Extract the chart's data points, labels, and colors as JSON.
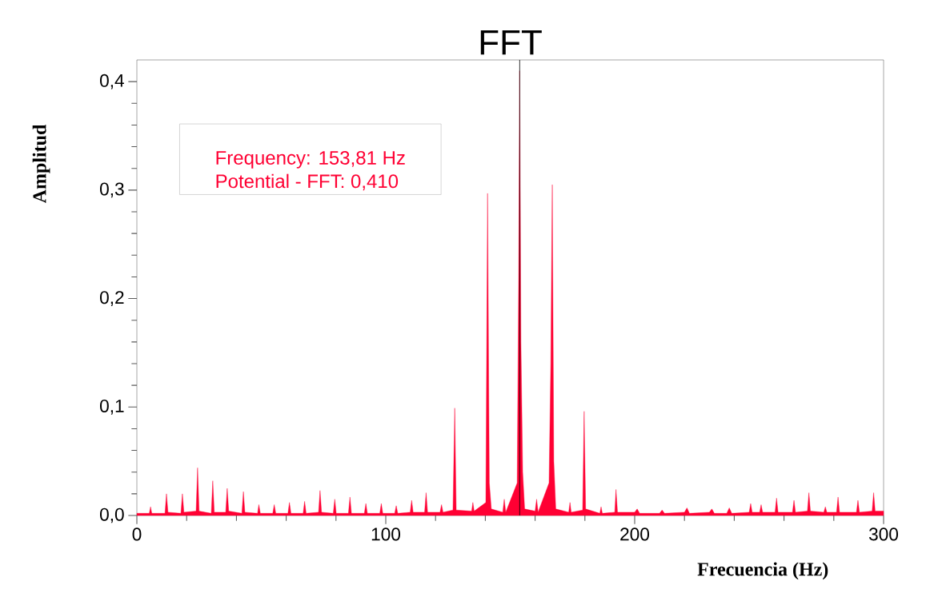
{
  "chart_data": {
    "type": "area",
    "title": "FFT",
    "xlabel": "Frecuencia (Hz)",
    "ylabel": "Amplitud",
    "xlim": [
      0,
      300
    ],
    "ylim": [
      0,
      0.42
    ],
    "xticks": [
      0,
      {
        "value": 20,
        "label": null
      },
      {
        "value": 40,
        "label": null
      },
      {
        "value": 60,
        "label": null
      },
      {
        "value": 80,
        "label": null
      },
      100,
      {
        "value": 120,
        "label": null
      },
      {
        "value": 140,
        "label": null
      },
      {
        "value": 160,
        "label": null
      },
      {
        "value": 180,
        "label": null
      },
      200,
      {
        "value": 220,
        "label": null
      },
      {
        "value": 240,
        "label": null
      },
      {
        "value": 260,
        "label": null
      },
      {
        "value": 280,
        "label": null
      },
      300
    ],
    "yticks": [
      {
        "value": 0,
        "label": "0,0"
      },
      {
        "value": 0.02,
        "label": null
      },
      {
        "value": 0.04,
        "label": null
      },
      {
        "value": 0.06,
        "label": null
      },
      {
        "value": 0.08,
        "label": null
      },
      {
        "value": 0.1,
        "label": "0,1"
      },
      {
        "value": 0.12,
        "label": null
      },
      {
        "value": 0.14,
        "label": null
      },
      {
        "value": 0.16,
        "label": null
      },
      {
        "value": 0.18,
        "label": null
      },
      {
        "value": 0.2,
        "label": "0,2"
      },
      {
        "value": 0.22,
        "label": null
      },
      {
        "value": 0.24,
        "label": null
      },
      {
        "value": 0.26,
        "label": null
      },
      {
        "value": 0.28,
        "label": null
      },
      {
        "value": 0.3,
        "label": "0,3"
      },
      {
        "value": 0.32,
        "label": null
      },
      {
        "value": 0.34,
        "label": null
      },
      {
        "value": 0.36,
        "label": null
      },
      {
        "value": 0.38,
        "label": null
      },
      {
        "value": 0.4,
        "label": "0,4"
      }
    ],
    "grid": false,
    "ref_lines": [
      {
        "axis": "x",
        "value": 153.81,
        "color": "#000000"
      }
    ],
    "annotations": [
      "Frequency: 153,81 Hz",
      "Potential - FFT: 0,410"
    ],
    "series": [
      {
        "color": "#ff0033",
        "x": [
          0,
          5,
          5.5,
          6,
          11.3,
          11.9,
          12.5,
          17.7,
          18.3,
          18.9,
          23.8,
          24.4,
          25,
          29.9,
          30.5,
          31.1,
          35.7,
          36.3,
          36.9,
          42.2,
          42.8,
          43.4,
          48.5,
          49,
          49.6,
          54.6,
          55.2,
          55.8,
          60.7,
          61.3,
          61.9,
          66.8,
          67.4,
          68,
          73,
          73.6,
          74.2,
          78.9,
          79.5,
          80.1,
          85,
          85.6,
          86.2,
          91.4,
          92,
          92.6,
          97.6,
          98.2,
          98.8,
          103.6,
          104.2,
          104.8,
          109.8,
          110.4,
          111,
          115.6,
          116.2,
          116.8,
          121.8,
          122.4,
          123,
          127,
          127.7,
          128.3,
          134.5,
          135,
          135.5,
          140.2,
          140.9,
          141.6,
          142.4,
          147,
          147.6,
          148.2,
          152.8,
          153.4,
          153.81,
          154.3,
          155,
          155.8,
          160,
          160.6,
          161.2,
          165.6,
          166.3,
          166.9,
          167.5,
          168.3,
          173.5,
          174,
          174.5,
          179.1,
          179.7,
          180.3,
          186,
          186.5,
          187,
          192,
          192.5,
          193.1,
          200,
          201,
          202,
          210,
          211,
          212,
          220,
          221,
          222,
          230,
          231,
          232,
          237,
          238,
          239,
          246,
          246.6,
          247.2,
          250.2,
          250.8,
          251.4,
          256.4,
          257,
          257.6,
          263.4,
          264,
          264.6,
          269.4,
          270,
          270.6,
          276,
          276.6,
          277.2,
          281.1,
          281.7,
          282.3,
          289.1,
          289.7,
          290.3,
          295.4,
          296,
          296.6,
          300
        ],
        "values": [
          0.002,
          0.002,
          0.008,
          0.002,
          0.002,
          0.02,
          0.003,
          0.002,
          0.02,
          0.003,
          0.004,
          0.044,
          0.004,
          0.002,
          0.032,
          0.003,
          0.003,
          0.025,
          0.004,
          0.002,
          0.022,
          0.003,
          0.002,
          0.01,
          0.002,
          0.002,
          0.01,
          0.002,
          0.002,
          0.012,
          0.002,
          0.002,
          0.013,
          0.002,
          0.003,
          0.023,
          0.003,
          0.002,
          0.015,
          0.002,
          0.002,
          0.017,
          0.002,
          0.002,
          0.011,
          0.002,
          0.002,
          0.011,
          0.002,
          0.002,
          0.009,
          0.002,
          0.003,
          0.014,
          0.003,
          0.003,
          0.021,
          0.003,
          0.003,
          0.01,
          0.003,
          0.005,
          0.099,
          0.005,
          0.004,
          0.012,
          0.004,
          0.012,
          0.297,
          0.03,
          0.006,
          0.003,
          0.015,
          0.003,
          0.03,
          0.22,
          0.41,
          0.16,
          0.04,
          0.006,
          0.004,
          0.015,
          0.003,
          0.03,
          0.14,
          0.305,
          0.05,
          0.006,
          0.003,
          0.012,
          0.003,
          0.005,
          0.096,
          0.006,
          0.002,
          0.008,
          0.002,
          0.003,
          0.024,
          0.003,
          0.003,
          0.006,
          0.002,
          0.002,
          0.005,
          0.002,
          0.003,
          0.007,
          0.002,
          0.003,
          0.006,
          0.002,
          0.002,
          0.007,
          0.002,
          0.003,
          0.011,
          0.003,
          0.003,
          0.01,
          0.003,
          0.003,
          0.016,
          0.003,
          0.003,
          0.014,
          0.003,
          0.004,
          0.021,
          0.004,
          0.003,
          0.008,
          0.003,
          0.003,
          0.017,
          0.003,
          0.003,
          0.014,
          0.003,
          0.004,
          0.021,
          0.004,
          0.004
        ]
      }
    ]
  }
}
